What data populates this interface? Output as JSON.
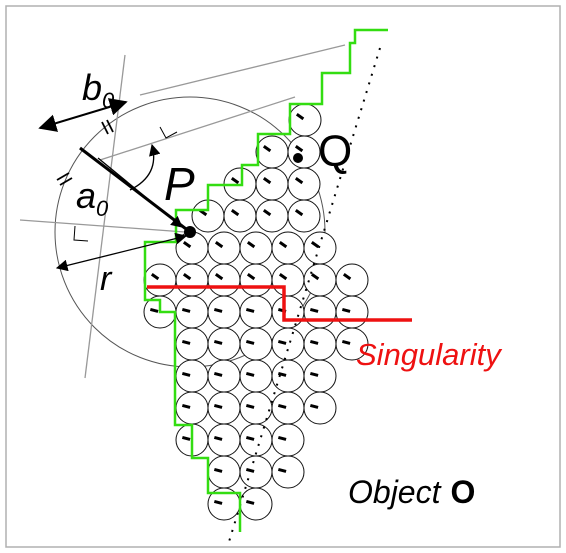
{
  "labels": {
    "p": "P",
    "q": "Q",
    "b0_main": "b",
    "b0_sub": "0",
    "a0_main": "a",
    "a0_sub": "0",
    "r": "r",
    "singularity": "Singularity",
    "object_word": "Object",
    "object_symbol": "O"
  },
  "colors": {
    "boundary": "#33dd11",
    "singularity": "#ee1111",
    "ink": "#000000",
    "guide": "#999999",
    "frame": "#b0b0b0"
  }
}
